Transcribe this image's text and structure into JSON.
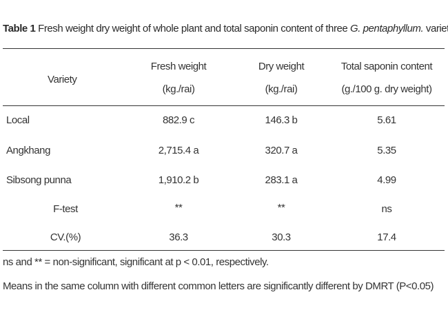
{
  "table": {
    "caption": {
      "label": "Table 1",
      "text_before": " Fresh weight dry weight of whole plant and total saponin content of three ",
      "species": "G. pentaphyllum.",
      "text_after": " varieties."
    },
    "headers": {
      "variety": "Variety",
      "fresh_weight": {
        "line1": "Fresh weight",
        "line2": "(kg./rai)"
      },
      "dry_weight": {
        "line1": "Dry weight",
        "line2": "(kg./rai)"
      },
      "saponin": {
        "line1": "Total saponin content",
        "line2": "(g./100 g. dry weight)"
      }
    },
    "rows": [
      {
        "variety": "Local",
        "fresh": "882.9 c",
        "dry": "146.3 b",
        "saponin": "5.61"
      },
      {
        "variety": "Angkhang",
        "fresh": "2,715.4 a",
        "dry": "320.7 a",
        "saponin": "5.35"
      },
      {
        "variety": "Sibsong punna",
        "fresh": "1,910.2 b",
        "dry": "283.1 a",
        "saponin": "4.99"
      }
    ],
    "ftest": {
      "label": "F-test",
      "fresh": "**",
      "dry": "**",
      "saponin": "ns"
    },
    "cv": {
      "label": "CV.(%)",
      "fresh": "36.3",
      "dry": "30.3",
      "saponin": "17.4"
    },
    "notes": [
      "ns and ** = non-significant, significant at  p < 0.01, respectively.",
      "Means in the same column with different common letters are significantly different by DMRT (P<0.05)"
    ]
  }
}
